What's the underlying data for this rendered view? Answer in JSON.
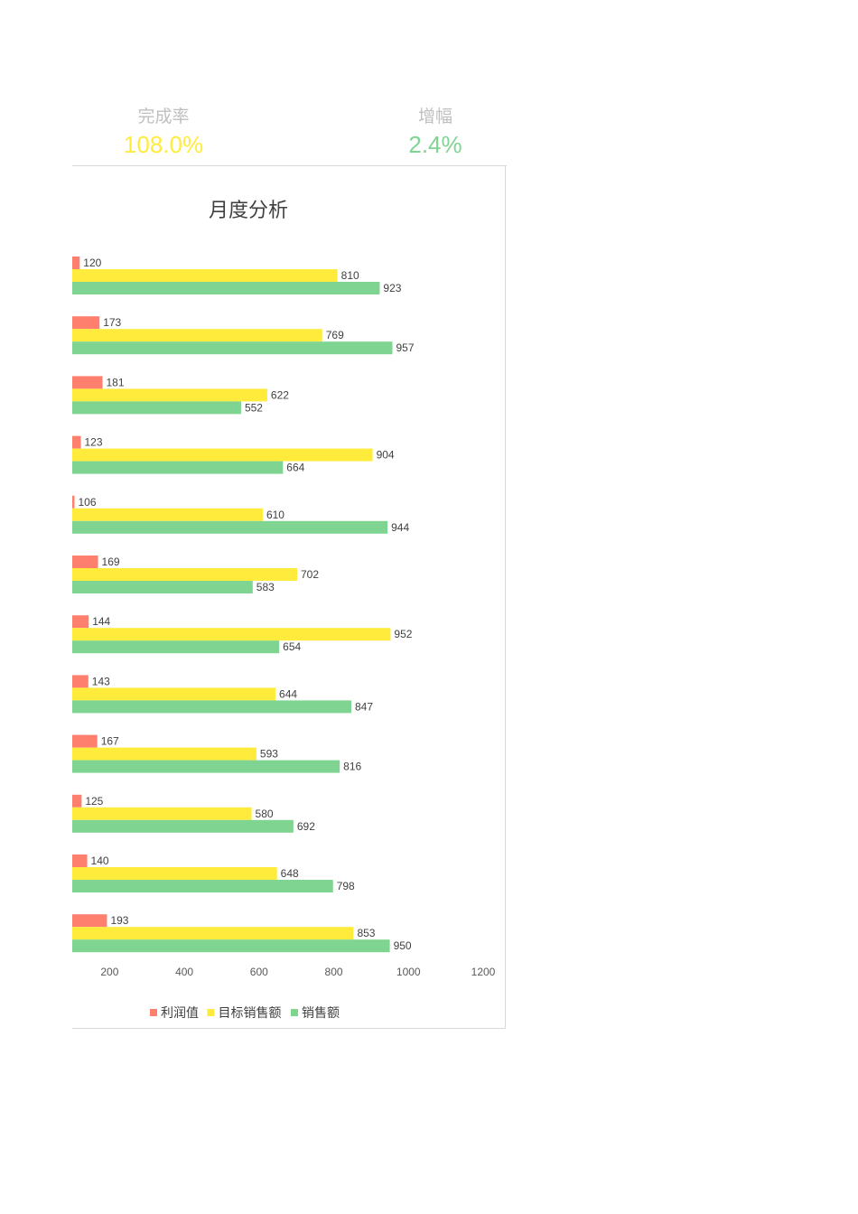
{
  "kpis": [
    {
      "label": "完成率",
      "value": "108.0%",
      "color": "#ffeb3b"
    },
    {
      "label": "增幅",
      "value": "2.4%",
      "color": "#7fd491"
    }
  ],
  "chart_data": {
    "type": "bar",
    "orientation": "horizontal",
    "title": "月度分析",
    "xlabel": "",
    "ylabel": "",
    "xlim": [
      100,
      1200
    ],
    "xticks": [
      200,
      400,
      600,
      800,
      1000,
      1200
    ],
    "grid": false,
    "legend_position": "bottom",
    "series": [
      {
        "name": "利润值",
        "color": "#ff7f6e",
        "values": [
          120,
          173,
          181,
          123,
          106,
          169,
          144,
          143,
          167,
          125,
          140,
          193
        ]
      },
      {
        "name": "目标销售额",
        "color": "#ffeb3b",
        "values": [
          810,
          769,
          622,
          904,
          610,
          702,
          952,
          644,
          593,
          580,
          648,
          853
        ]
      },
      {
        "name": "销售额",
        "color": "#7fd491",
        "values": [
          923,
          957,
          552,
          664,
          944,
          583,
          654,
          847,
          816,
          692,
          798,
          950
        ]
      }
    ]
  }
}
